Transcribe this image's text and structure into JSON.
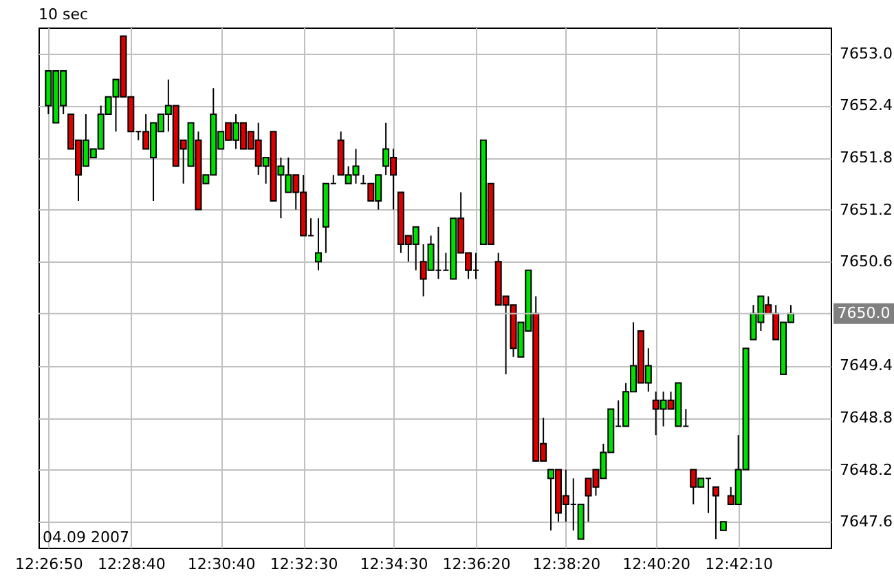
{
  "chart_data": {
    "type": "candlestick",
    "title": "10 sec",
    "categories": [
      "12:26:50",
      null,
      null,
      null,
      null,
      null,
      null,
      null,
      null,
      null,
      null,
      "12:28:40",
      null,
      null,
      null,
      null,
      null,
      null,
      null,
      null,
      null,
      null,
      null,
      "12:30:40",
      null,
      null,
      null,
      null,
      null,
      null,
      null,
      null,
      null,
      null,
      "12:32:30",
      null,
      null,
      null,
      null,
      null,
      null,
      null,
      null,
      null,
      null,
      null,
      "12:34:30",
      null,
      null,
      null,
      null,
      null,
      null,
      null,
      null,
      null,
      null,
      "12:36:20",
      null,
      null,
      null,
      null,
      null,
      null,
      null,
      null,
      null,
      null,
      null,
      "12:38:20",
      null,
      null,
      null,
      null,
      null,
      null,
      null,
      null,
      null,
      null,
      null,
      "12:40:20",
      null,
      null,
      null,
      null,
      null,
      null,
      null,
      null,
      null,
      null,
      "12:42:10",
      null,
      null,
      null,
      null,
      null,
      null,
      null
    ],
    "ohlc": [
      [
        7652.4,
        7652.8,
        7652.3,
        7652.8
      ],
      [
        7652.2,
        7652.8,
        7652.2,
        7652.8
      ],
      [
        7652.4,
        7652.8,
        7652.3,
        7652.8
      ],
      [
        7652.3,
        7652.3,
        7651.9,
        7651.9
      ],
      [
        7652.0,
        7652.0,
        7651.3,
        7651.6
      ],
      [
        7651.7,
        7652.3,
        7651.7,
        7652.0
      ],
      [
        7651.8,
        7651.9,
        7651.8,
        7651.9
      ],
      [
        7651.9,
        7652.4,
        7651.9,
        7652.3
      ],
      [
        7652.3,
        7652.5,
        7652.3,
        7652.5
      ],
      [
        7652.5,
        7652.7,
        7652.1,
        7652.7
      ],
      [
        7653.2,
        7653.2,
        7652.5,
        7652.5
      ],
      [
        7652.5,
        7652.5,
        7652.1,
        7652.1
      ],
      [
        7652.1,
        7652.1,
        7652.0,
        7652.1
      ],
      [
        7652.1,
        7652.3,
        7651.9,
        7651.9
      ],
      [
        7651.8,
        7652.2,
        7651.3,
        7652.2
      ],
      [
        7652.1,
        7652.3,
        7652.1,
        7652.3
      ],
      [
        7652.3,
        7652.7,
        7652.1,
        7652.4
      ],
      [
        7652.4,
        7652.4,
        7651.7,
        7651.7
      ],
      [
        7652.0,
        7652.0,
        7651.5,
        7651.9
      ],
      [
        7651.7,
        7652.2,
        7651.7,
        7652.2
      ],
      [
        7652.0,
        7652.1,
        7651.2,
        7651.2
      ],
      [
        7651.5,
        7651.6,
        7651.5,
        7651.6
      ],
      [
        7651.6,
        7652.6,
        7651.6,
        7652.3
      ],
      [
        7651.9,
        7652.1,
        7651.9,
        7652.1
      ],
      [
        7652.2,
        7652.2,
        7652.0,
        7652.0
      ],
      [
        7652.0,
        7652.3,
        7651.9,
        7652.2
      ],
      [
        7652.2,
        7652.2,
        7651.9,
        7651.9
      ],
      [
        7652.1,
        7652.1,
        7651.9,
        7651.9
      ],
      [
        7652.0,
        7652.2,
        7651.6,
        7651.7
      ],
      [
        7651.7,
        7651.8,
        7651.5,
        7651.8
      ],
      [
        7652.1,
        7652.1,
        7651.3,
        7651.3
      ],
      [
        7651.6,
        7651.8,
        7651.1,
        7651.7
      ],
      [
        7651.4,
        7651.8,
        7651.4,
        7651.6
      ],
      [
        7651.6,
        7651.6,
        7651.2,
        7651.4
      ],
      [
        7651.4,
        7651.6,
        7650.9,
        7650.9
      ],
      [
        7650.9,
        7651.1,
        7650.9,
        7650.9
      ],
      [
        7650.6,
        7651.1,
        7650.5,
        7650.7
      ],
      [
        7651.0,
        7651.5,
        7650.7,
        7651.5
      ],
      [
        7651.5,
        7651.6,
        7651.5,
        7651.5
      ],
      [
        7652.0,
        7652.1,
        7651.6,
        7651.6
      ],
      [
        7651.5,
        7651.7,
        7651.5,
        7651.6
      ],
      [
        7651.6,
        7651.9,
        7651.5,
        7651.7
      ],
      [
        7651.5,
        7651.6,
        7651.5,
        7651.5
      ],
      [
        7651.5,
        7651.5,
        7651.3,
        7651.3
      ],
      [
        7651.3,
        7651.6,
        7651.2,
        7651.6
      ],
      [
        7651.7,
        7652.2,
        7651.6,
        7651.9
      ],
      [
        7651.8,
        7651.9,
        7651.2,
        7651.6
      ],
      [
        7651.4,
        7651.4,
        7650.7,
        7650.8
      ],
      [
        7650.9,
        7650.9,
        7650.6,
        7650.8
      ],
      [
        7650.8,
        7651.0,
        7650.5,
        7651.0
      ],
      [
        7650.6,
        7650.8,
        7650.2,
        7650.4
      ],
      [
        7650.5,
        7650.9,
        7650.5,
        7650.8
      ],
      [
        7650.5,
        7651.0,
        7650.4,
        7650.5
      ],
      [
        7650.5,
        7650.7,
        7650.5,
        7650.5
      ],
      [
        7650.4,
        7651.1,
        7650.4,
        7651.1
      ],
      [
        7651.1,
        7651.4,
        7650.7,
        7650.7
      ],
      [
        7650.7,
        7650.7,
        7650.4,
        7650.5
      ],
      [
        7650.5,
        7650.7,
        7650.4,
        7650.5
      ],
      [
        7650.8,
        7652.0,
        7650.8,
        7652.0
      ],
      [
        7651.5,
        7651.5,
        7650.8,
        7650.8
      ],
      [
        7650.6,
        7650.7,
        7650.1,
        7650.1
      ],
      [
        7650.2,
        7650.2,
        7649.3,
        7650.1
      ],
      [
        7650.1,
        7650.1,
        7649.5,
        7649.6
      ],
      [
        7649.5,
        7649.9,
        7649.5,
        7649.9
      ],
      [
        7649.8,
        7650.5,
        7649.8,
        7650.5
      ],
      [
        7650.0,
        7650.2,
        7648.3,
        7648.3
      ],
      [
        7648.5,
        7648.8,
        7648.3,
        7648.3
      ],
      [
        7648.1,
        7648.2,
        7647.5,
        7648.2
      ],
      [
        7648.2,
        7648.2,
        7647.6,
        7647.7
      ],
      [
        7647.9,
        7648.2,
        7647.6,
        7647.8
      ],
      [
        7647.8,
        7648.1,
        7647.5,
        7647.8
      ],
      [
        7647.4,
        7647.8,
        7647.4,
        7647.8
      ],
      [
        7648.1,
        7648.1,
        7647.6,
        7647.9
      ],
      [
        7648.2,
        7648.2,
        7647.9,
        7648.0
      ],
      [
        7648.1,
        7648.5,
        7648.1,
        7648.4
      ],
      [
        7648.4,
        7648.9,
        7648.4,
        7648.9
      ],
      [
        7648.7,
        7649.0,
        7648.7,
        7648.7
      ],
      [
        7648.7,
        7649.2,
        7648.7,
        7649.1
      ],
      [
        7649.1,
        7649.9,
        7649.1,
        7649.4
      ],
      [
        7649.8,
        7649.8,
        7649.2,
        7649.2
      ],
      [
        7649.2,
        7649.6,
        7649.1,
        7649.4
      ],
      [
        7649.0,
        7649.1,
        7648.6,
        7648.9
      ],
      [
        7648.9,
        7649.1,
        7648.7,
        7649.0
      ],
      [
        7649.0,
        7649.1,
        7648.9,
        7648.9
      ],
      [
        7648.7,
        7649.2,
        7648.7,
        7649.2
      ],
      [
        7648.7,
        7648.9,
        7648.7,
        7648.7
      ],
      [
        7648.2,
        7648.2,
        7647.8,
        7648.0
      ],
      [
        7648.0,
        7648.1,
        7648.0,
        7648.1
      ],
      [
        7648.1,
        7648.1,
        7647.7,
        7648.1
      ],
      [
        7648.0,
        7648.0,
        7647.4,
        7647.9
      ],
      [
        7647.5,
        7647.6,
        7647.5,
        7647.6
      ],
      [
        7647.9,
        7648.0,
        7647.8,
        7647.8
      ],
      [
        7647.8,
        7648.6,
        7647.8,
        7648.2
      ],
      [
        7648.2,
        7649.6,
        7648.2,
        7649.6
      ],
      [
        7649.7,
        7650.1,
        7649.7,
        7650.0
      ],
      [
        7649.9,
        7650.2,
        7649.8,
        7650.2
      ],
      [
        7650.1,
        7650.2,
        7650.0,
        7650.0
      ],
      [
        7650.0,
        7650.1,
        7649.7,
        7649.7
      ],
      [
        7649.3,
        7649.9,
        7649.3,
        7649.9
      ],
      [
        7649.9,
        7650.1,
        7649.9,
        7650.0
      ]
    ],
    "colors": [
      "#00e000",
      "#00e000",
      "#00e000",
      "#dd0000",
      "#dd0000",
      "#00e000",
      "#00e000",
      "#00e000",
      "#00e000",
      "#00e000",
      "#dd0000",
      "#dd0000",
      "#000000",
      "#dd0000",
      "#00e000",
      "#00e000",
      "#00e000",
      "#dd0000",
      "#dd0000",
      "#00e000",
      "#dd0000",
      "#00e000",
      "#00e000",
      "#00e000",
      "#dd0000",
      "#00e000",
      "#dd0000",
      "#dd0000",
      "#dd0000",
      "#00e000",
      "#dd0000",
      "#00e000",
      "#00e000",
      "#dd0000",
      "#dd0000",
      "#000000",
      "#00e000",
      "#00e000",
      "#000000",
      "#dd0000",
      "#00e000",
      "#00e000",
      "#000000",
      "#dd0000",
      "#00e000",
      "#00e000",
      "#dd0000",
      "#dd0000",
      "#dd0000",
      "#00e000",
      "#dd0000",
      "#00e000",
      "#000000",
      "#000000",
      "#00e000",
      "#dd0000",
      "#dd0000",
      "#000000",
      "#00e000",
      "#dd0000",
      "#dd0000",
      "#dd0000",
      "#dd0000",
      "#00e000",
      "#00e000",
      "#dd0000",
      "#dd0000",
      "#00e000",
      "#dd0000",
      "#dd0000",
      "#000000",
      "#00e000",
      "#dd0000",
      "#dd0000",
      "#00e000",
      "#00e000",
      "#000000",
      "#00e000",
      "#00e000",
      "#dd0000",
      "#00e000",
      "#dd0000",
      "#00e000",
      "#dd0000",
      "#00e000",
      "#000000",
      "#dd0000",
      "#00e000",
      "#000000",
      "#dd0000",
      "#00e000",
      "#dd0000",
      "#00e000",
      "#00e000",
      "#00e000",
      "#00e000",
      "#dd0000",
      "#dd0000",
      "#00e000",
      "#00e000"
    ],
    "ylim": [
      7647.3,
      7653.3
    ],
    "yticks": [
      {
        "value": 7653,
        "label": "7653.0"
      },
      {
        "value": 7652.4,
        "label": "7652.4"
      },
      {
        "value": 7651.8,
        "label": "7651.8"
      },
      {
        "value": 7651.2,
        "label": "7651.2"
      },
      {
        "value": 7650.6,
        "label": "7650.6"
      },
      {
        "value": 7649.4,
        "label": "7649.4"
      },
      {
        "value": 7648.8,
        "label": "7648.8"
      },
      {
        "value": 7648.2,
        "label": "7648.2"
      },
      {
        "value": 7647.6,
        "label": "7647.6"
      }
    ],
    "grid": true,
    "ref_lines": [
      {
        "axis": "y",
        "value": 7650.0,
        "label": "7650.0"
      }
    ],
    "annotations": [
      "04.09 2007"
    ]
  }
}
